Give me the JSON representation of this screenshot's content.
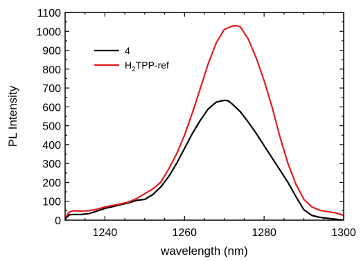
{
  "chart_data": {
    "type": "line",
    "title": "",
    "xlabel": "wavelength (nm)",
    "ylabel": "PL Intensity",
    "xlim": [
      1230,
      1300
    ],
    "ylim": [
      0,
      1100
    ],
    "x_ticks": [
      1240,
      1260,
      1280,
      1300
    ],
    "y_ticks": [
      0,
      100,
      200,
      300,
      400,
      500,
      600,
      700,
      800,
      900,
      1000,
      1100
    ],
    "grid": false,
    "legend": {
      "placement": "upper-left",
      "entries": [
        {
          "text": "4",
          "subscript": "",
          "suffix": ""
        },
        {
          "text": "H",
          "subscript": "2",
          "suffix": "TPP-ref"
        }
      ]
    },
    "series": [
      {
        "name": "4",
        "color": "#000000",
        "x": [
          1230,
          1231,
          1232,
          1234,
          1236,
          1238,
          1240,
          1242,
          1244,
          1246,
          1248,
          1250,
          1252,
          1254,
          1256,
          1258,
          1260,
          1262,
          1264,
          1266,
          1268,
          1270,
          1271,
          1272,
          1274,
          1276,
          1278,
          1280,
          1282,
          1284,
          1286,
          1288,
          1290,
          1292,
          1294,
          1296,
          1298,
          1300
        ],
        "y": [
          5,
          28,
          30,
          30,
          35,
          48,
          62,
          72,
          82,
          92,
          105,
          110,
          135,
          175,
          230,
          300,
          380,
          460,
          530,
          590,
          625,
          635,
          632,
          615,
          575,
          520,
          460,
          395,
          330,
          265,
          200,
          125,
          55,
          25,
          15,
          10,
          5,
          0
        ]
      },
      {
        "name": "H2TPP-ref",
        "color": "#e41a1c",
        "x": [
          1230,
          1231,
          1232,
          1234,
          1236,
          1238,
          1240,
          1242,
          1244,
          1246,
          1248,
          1250,
          1252,
          1254,
          1256,
          1258,
          1260,
          1262,
          1264,
          1266,
          1268,
          1270,
          1272,
          1273,
          1274,
          1276,
          1278,
          1280,
          1282,
          1284,
          1286,
          1288,
          1290,
          1292,
          1294,
          1296,
          1298,
          1300
        ],
        "y": [
          10,
          42,
          50,
          48,
          50,
          58,
          70,
          78,
          86,
          96,
          115,
          140,
          165,
          200,
          270,
          350,
          450,
          570,
          700,
          830,
          940,
          1010,
          1028,
          1030,
          1025,
          960,
          860,
          740,
          600,
          440,
          300,
          190,
          110,
          70,
          52,
          45,
          38,
          25
        ]
      }
    ]
  }
}
